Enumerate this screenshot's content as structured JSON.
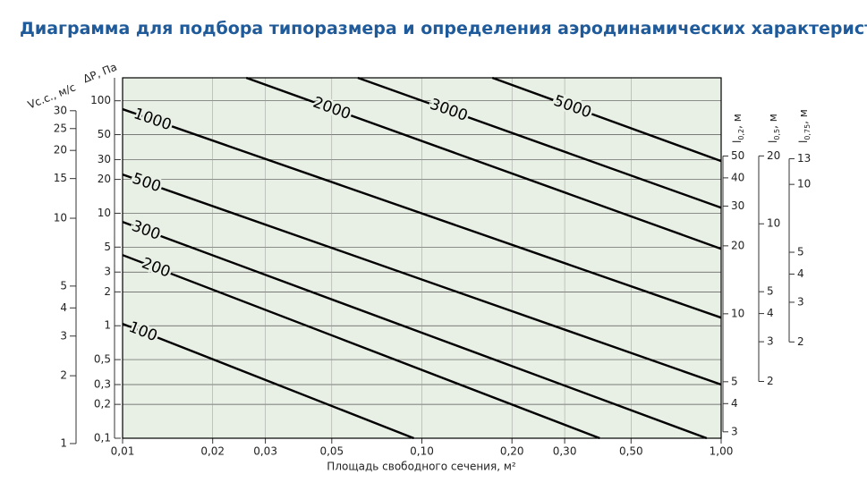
{
  "chart_data": {
    "type": "line",
    "title": "Диаграмма для подбора типоразмера и определения аэродинамических характеристик",
    "x_label": "Площадь свободного сечения, м²",
    "x_log": true,
    "xlim": [
      0.01,
      1
    ],
    "xticks": [
      {
        "value": 0.01,
        "label": "0,01"
      },
      {
        "value": 0.02,
        "label": "0,02"
      },
      {
        "value": 0.03,
        "label": "0,03"
      },
      {
        "value": 0.05,
        "label": "0,05"
      },
      {
        "value": 0.1,
        "label": "0,10"
      },
      {
        "value": 0.2,
        "label": "0,20"
      },
      {
        "value": 0.3,
        "label": "0,30"
      },
      {
        "value": 0.5,
        "label": "0,50"
      },
      {
        "value": 1,
        "label": "1,00"
      }
    ],
    "y_label": "ΔP, Па",
    "y_log": true,
    "ylim": [
      0.1,
      160
    ],
    "yticks": [
      {
        "value": 0.1,
        "label": "0,1"
      },
      {
        "value": 0.2,
        "label": "0,2"
      },
      {
        "value": 0.3,
        "label": "0,3"
      },
      {
        "value": 0.5,
        "label": "0,5"
      },
      1,
      2,
      3,
      5,
      10,
      20,
      30,
      50,
      100
    ],
    "grid": true,
    "background": "#e8efe4",
    "series": [
      {
        "name": "100",
        "color": "#000000",
        "x": [
          0.01,
          0.094
        ],
        "values": [
          1.04,
          0.1
        ]
      },
      {
        "name": "200",
        "color": "#000000",
        "x": [
          0.01,
          0.393
        ],
        "values": [
          4.25,
          0.1
        ]
      },
      {
        "name": "300",
        "color": "#000000",
        "x": [
          0.01,
          0.895
        ],
        "values": [
          8.37,
          0.1
        ]
      },
      {
        "name": "500",
        "color": "#000000",
        "x": [
          0.01,
          1
        ],
        "values": [
          22.1,
          0.3
        ]
      },
      {
        "name": "1000",
        "color": "#000000",
        "x": [
          0.01,
          1
        ],
        "values": [
          84.2,
          1.18
        ]
      },
      {
        "name": "2000",
        "color": "#000000",
        "x": [
          0.0259,
          1
        ],
        "values": [
          160,
          4.83
        ]
      },
      {
        "name": "3000",
        "color": "#000000",
        "x": [
          0.0611,
          1
        ],
        "values": [
          160,
          11.2
        ]
      },
      {
        "name": "5000",
        "color": "#000000",
        "x": [
          0.172,
          1
        ],
        "values": [
          160,
          29.1
        ]
      }
    ],
    "extra_axes": [
      {
        "title": "Vc.c., м/с",
        "side": "left",
        "lim": [
          1.056,
          42
        ],
        "ticks": [
          1,
          2,
          3,
          4,
          5,
          10,
          15,
          20,
          25,
          30
        ]
      },
      {
        "title": "l",
        "title_sub": "0,2",
        "title_suffix": ", м",
        "side": "right",
        "lim": [
          2.81,
          111
        ],
        "ticks": [
          3,
          4,
          5,
          10,
          20,
          30,
          40,
          50
        ]
      },
      {
        "title": "l",
        "title_sub": "0,5",
        "title_suffix": ", м",
        "side": "right",
        "lim": [
          1.12,
          44.4
        ],
        "ticks": [
          2,
          3,
          4,
          5,
          10,
          20
        ]
      },
      {
        "title": "l",
        "title_sub": "0,75",
        "title_suffix": ", м",
        "side": "right",
        "lim": [
          0.748,
          29.7
        ],
        "ticks": [
          2,
          3,
          4,
          5,
          10,
          13
        ]
      }
    ]
  }
}
